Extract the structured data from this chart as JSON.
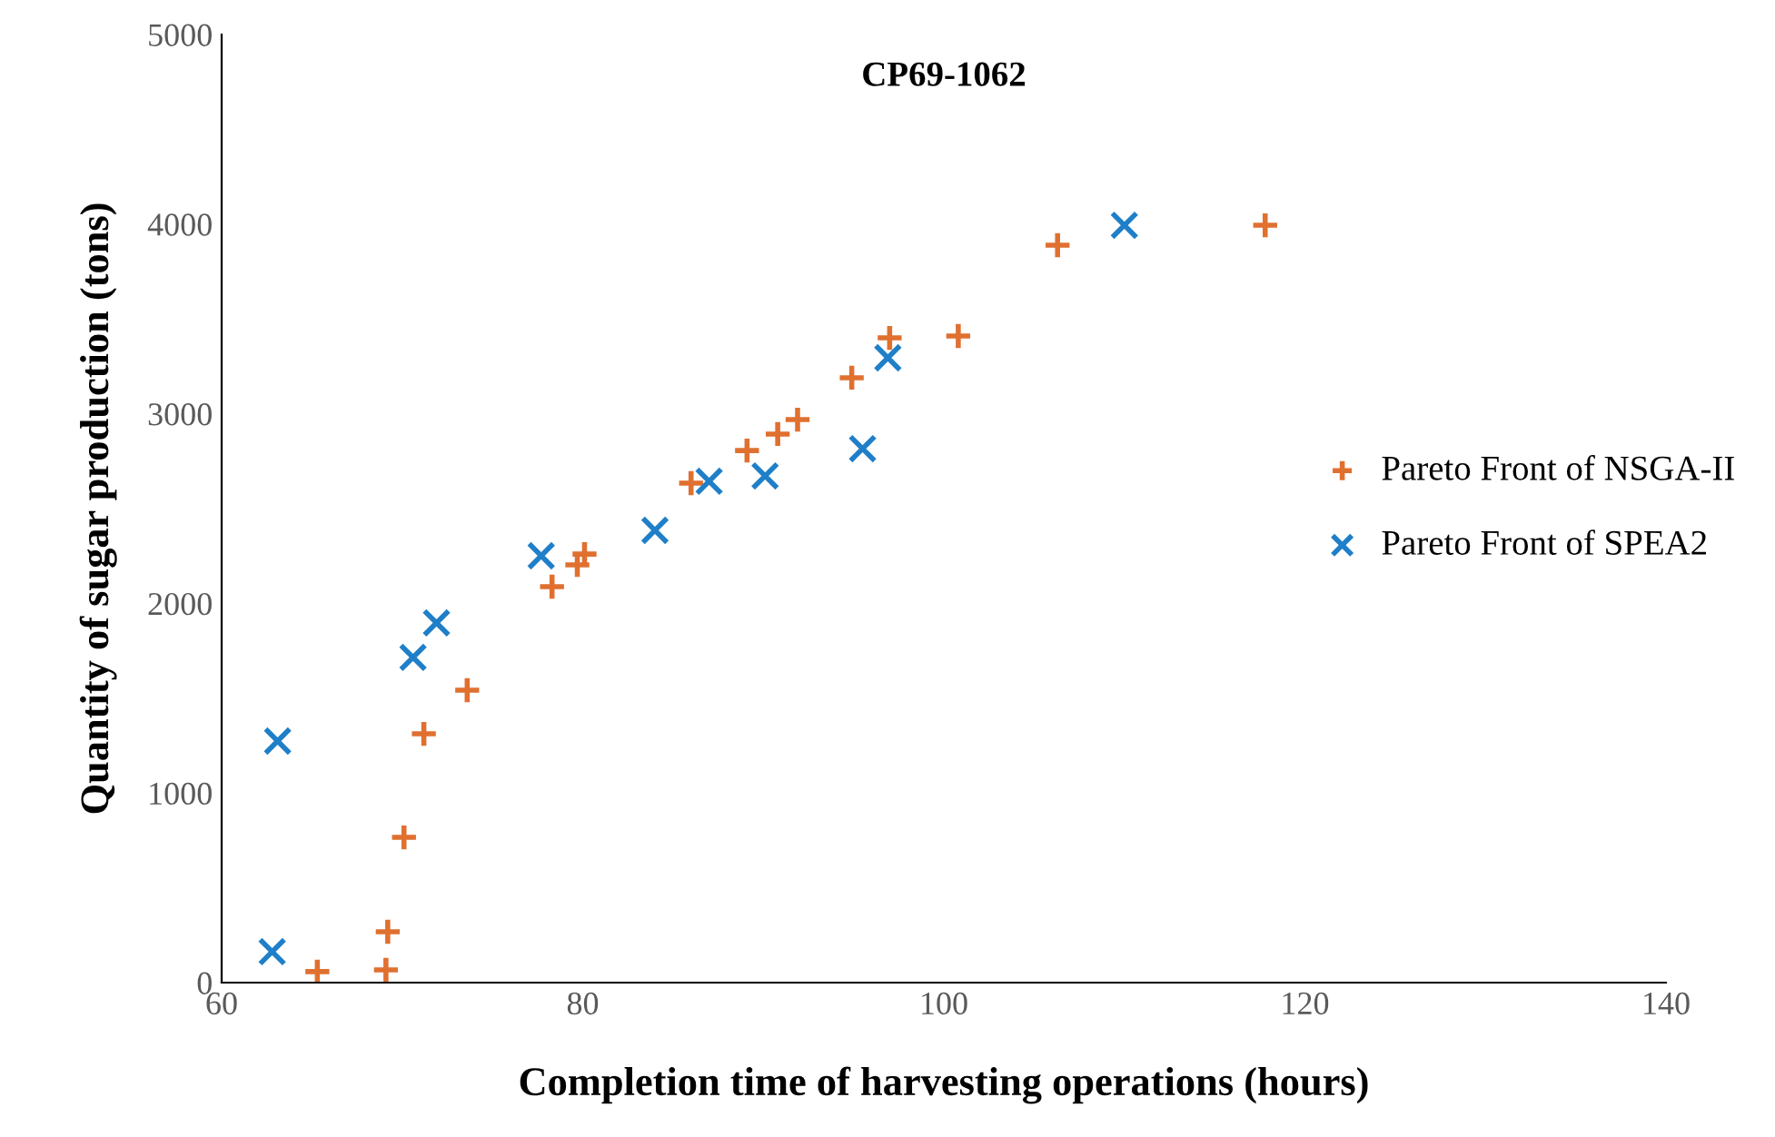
{
  "chart_data": {
    "type": "scatter",
    "title": "CP69-1062",
    "xlabel": "Completion time of harvesting operations (hours)",
    "ylabel": "Quantity of sugar production (tons)",
    "xlim": [
      60,
      140
    ],
    "xticks": [
      60,
      80,
      100,
      120,
      140
    ],
    "ylim": [
      0,
      5000
    ],
    "yticks": [
      0,
      1000,
      2000,
      3000,
      4000,
      5000
    ],
    "grid": false,
    "legend": "right",
    "series": [
      {
        "name": "Pareto Front of NSGA-II",
        "color": "#e07030",
        "marker": "plus",
        "x": [
          65.3,
          69.2,
          69.1,
          70.1,
          71.2,
          73.6,
          78.3,
          79.7,
          80.1,
          86.0,
          89.1,
          90.8,
          91.9,
          94.9,
          97.0,
          100.8,
          106.3,
          117.8
        ],
        "values": [
          58,
          268,
          67,
          766,
          1312,
          1542,
          2088,
          2203,
          2260,
          2634,
          2806,
          2893,
          2969,
          3190,
          3400,
          3410,
          3889,
          3994
        ]
      },
      {
        "name": "Pareto Front of SPEA2",
        "color": "#1f7fc8",
        "marker": "cross",
        "x": [
          62.8,
          63.1,
          70.6,
          71.9,
          77.7,
          84.0,
          87.0,
          90.1,
          95.5,
          96.9,
          110.0
        ],
        "values": [
          163,
          1274,
          1715,
          1897,
          2251,
          2385,
          2644,
          2672,
          2816,
          3295,
          3994
        ]
      }
    ]
  }
}
